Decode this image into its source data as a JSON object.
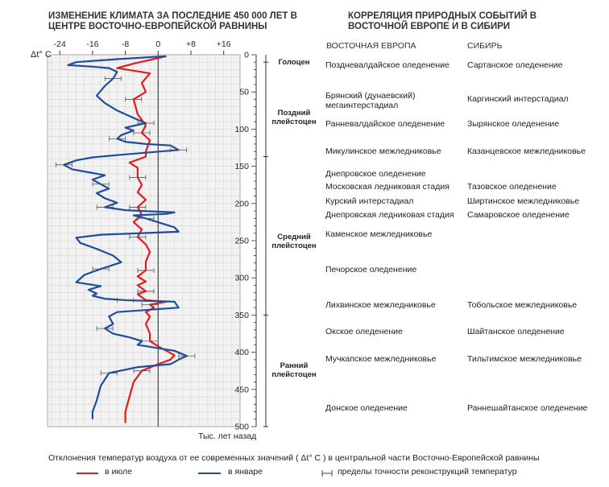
{
  "titles": {
    "left": "ИЗМЕНЕНИЕ КЛИМАТА ЗА ПОСЛЕДНИЕ 450 000 ЛЕТ В ЦЕНТРЕ ВОСТОЧНО-ЕВРОПЕЙСКОЙ РАВНИНЫ",
    "right": "КОРРЕЛЯЦИЯ ПРИРОДНЫХ СОБЫТИЙ В ВОСТОЧНОЙ ЕВРОПЕ И В СИБИРИ"
  },
  "columns": {
    "east_europe": "ВОСТОЧНАЯ ЕВРОПА",
    "siberia": "СИБИРЬ"
  },
  "chart_data": {
    "type": "line",
    "xlabel": "Δt° C",
    "ylabel": "Тыс. лет назад",
    "x_ticks": [
      "-24",
      "-16",
      "-8",
      "0",
      "+8",
      "+16"
    ],
    "x_tick_values": [
      -24,
      -16,
      -8,
      0,
      8,
      16
    ],
    "y_ticks": [
      0,
      50,
      100,
      150,
      200,
      250,
      300,
      350,
      400,
      450,
      500
    ],
    "xlim": [
      -27,
      20
    ],
    "ylim": [
      0,
      500
    ],
    "grid": true,
    "series": [
      {
        "name": "в июле",
        "color": "#e21b1b",
        "points": [
          [
            2,
            2
          ],
          [
            -6,
            12
          ],
          [
            -10,
            18
          ],
          [
            -2,
            25
          ],
          [
            -4,
            38
          ],
          [
            -3,
            50
          ],
          [
            -6,
            60
          ],
          [
            -5,
            80
          ],
          [
            -3,
            95
          ],
          [
            -4,
            105
          ],
          [
            -2,
            115
          ],
          [
            -3,
            130
          ],
          [
            -3,
            137
          ],
          [
            -7,
            145
          ],
          [
            -5,
            152
          ],
          [
            -5,
            165
          ],
          [
            -4,
            175
          ],
          [
            -5,
            185
          ],
          [
            -3,
            195
          ],
          [
            -5,
            205
          ],
          [
            -4,
            215
          ],
          [
            -6,
            225
          ],
          [
            -4,
            235
          ],
          [
            -5,
            245
          ],
          [
            -3,
            255
          ],
          [
            -2,
            265
          ],
          [
            -3,
            278
          ],
          [
            -3,
            290
          ],
          [
            -5,
            298
          ],
          [
            -3,
            305
          ],
          [
            -5,
            310
          ],
          [
            -3,
            318
          ],
          [
            -5,
            322
          ],
          [
            -3,
            330
          ],
          [
            2,
            332
          ],
          [
            -2,
            336
          ],
          [
            -1,
            340
          ],
          [
            -3,
            346
          ],
          [
            -2,
            352
          ],
          [
            -3,
            362
          ],
          [
            -2,
            375
          ],
          [
            -2,
            385
          ],
          [
            0,
            392
          ],
          [
            2,
            398
          ],
          [
            4,
            404
          ],
          [
            3,
            410
          ],
          [
            0,
            416
          ],
          [
            -4,
            425
          ],
          [
            -6,
            440
          ],
          [
            -7,
            460
          ],
          [
            -8,
            480
          ],
          [
            -8,
            495
          ]
        ]
      },
      {
        "name": "в январе",
        "color": "#1f4d9b",
        "points": [
          [
            2,
            2
          ],
          [
            -10,
            6
          ],
          [
            -20,
            10
          ],
          [
            -22,
            14
          ],
          [
            -16,
            16
          ],
          [
            -12,
            18
          ],
          [
            -10,
            23
          ],
          [
            -11,
            32
          ],
          [
            -13,
            42
          ],
          [
            -15,
            55
          ],
          [
            -13,
            65
          ],
          [
            -10,
            75
          ],
          [
            -6,
            85
          ],
          [
            -3,
            92
          ],
          [
            -8,
            98
          ],
          [
            -6,
            102
          ],
          [
            -9,
            108
          ],
          [
            -10,
            113
          ],
          [
            -8,
            117
          ],
          [
            -3,
            120
          ],
          [
            3,
            122
          ],
          [
            5,
            128
          ],
          [
            -8,
            134
          ],
          [
            -16,
            138
          ],
          [
            -20,
            142
          ],
          [
            -23,
            148
          ],
          [
            -21,
            154
          ],
          [
            -17,
            158
          ],
          [
            -13,
            162
          ],
          [
            -16,
            168
          ],
          [
            -14,
            174
          ],
          [
            -12,
            180
          ],
          [
            -15,
            186
          ],
          [
            -13,
            193
          ],
          [
            -10,
            199
          ],
          [
            -13,
            205
          ],
          [
            -8,
            209
          ],
          [
            4,
            212
          ],
          [
            2,
            214
          ],
          [
            -6,
            216
          ],
          [
            -3,
            220
          ],
          [
            4,
            232
          ],
          [
            5,
            238
          ],
          [
            -14,
            242
          ],
          [
            -20,
            246
          ],
          [
            -19,
            253
          ],
          [
            -15,
            261
          ],
          [
            -11,
            270
          ],
          [
            -9,
            279
          ],
          [
            -14,
            288
          ],
          [
            -18,
            296
          ],
          [
            -20,
            306
          ],
          [
            -14,
            311
          ],
          [
            -17,
            316
          ],
          [
            -15,
            321
          ],
          [
            -16,
            324
          ],
          [
            -13,
            328
          ],
          [
            -8,
            330
          ],
          [
            4,
            332
          ],
          [
            5,
            340
          ],
          [
            -10,
            346
          ],
          [
            -12,
            352
          ],
          [
            -11,
            362
          ],
          [
            -13,
            368
          ],
          [
            -11,
            375
          ],
          [
            -7,
            380
          ],
          [
            -4,
            385
          ],
          [
            -5,
            390
          ],
          [
            4,
            398
          ],
          [
            7,
            405
          ],
          [
            5,
            410
          ],
          [
            3,
            416
          ],
          [
            -5,
            420
          ],
          [
            -12,
            428
          ],
          [
            -14,
            445
          ],
          [
            -15,
            465
          ],
          [
            -16,
            480
          ],
          [
            -16,
            490
          ]
        ]
      }
    ],
    "periods": [
      {
        "label": "Голоцен",
        "y": 10
      },
      {
        "label": "Поздний плейстоцен",
        "y": 78
      },
      {
        "label": "Средний плейстоцен",
        "y": 245
      },
      {
        "label": "Ранний плейстоцен",
        "y": 418
      }
    ],
    "period_boundaries": [
      10,
      137,
      350,
      500
    ]
  },
  "events_east_europe": [
    {
      "text": "Поздневалдайское оледенение",
      "y": 14
    },
    {
      "text": "Брянский (дунаевский) мегаинтерстадиал",
      "y": 55
    },
    {
      "text": "Ранневалдайское оледенение",
      "y": 93
    },
    {
      "text": "Микулинское межледниковье",
      "y": 130
    },
    {
      "text": "Днепровское оледенение",
      "y": 160
    },
    {
      "text": "Московская ледниковая стадия",
      "y": 177
    },
    {
      "text": "Курский интерстадиал",
      "y": 197
    },
    {
      "text": "Днепровская ледниковая стадия",
      "y": 215
    },
    {
      "text": "Каменское межледниковье",
      "y": 241
    },
    {
      "text": "Печорское оледенение",
      "y": 289
    },
    {
      "text": "Лихвинское межледниковье",
      "y": 337
    },
    {
      "text": "Окское оледенение",
      "y": 372
    },
    {
      "text": "Мучкапское межледниковье",
      "y": 409
    },
    {
      "text": "Донское оледенение",
      "y": 475
    }
  ],
  "events_siberia": [
    {
      "text": "Сартанское оледенение",
      "y": 14
    },
    {
      "text": "Каргинский интерстадиал",
      "y": 60
    },
    {
      "text": "Зырянское оледенение",
      "y": 93
    },
    {
      "text": "Казанцевское межледниковье",
      "y": 130
    },
    {
      "text": "Тазовское оледенение",
      "y": 177
    },
    {
      "text": "Ширтинское межледниковье",
      "y": 197
    },
    {
      "text": "Самаровское оледенение",
      "y": 215
    },
    {
      "text": "Тобольское межледниковье",
      "y": 337
    },
    {
      "text": "Шайтанское оледенение",
      "y": 372
    },
    {
      "text": "Тильтимское межледниковье",
      "y": 409
    },
    {
      "text": "Раннешайтанское оледенение",
      "y": 475
    }
  ],
  "footer": {
    "y_axis_label": "Тыс. лет назад",
    "note_prefix": "Отклонения температур воздуха от ее современных значений (",
    "note_unit": "Δt° C",
    "note_suffix": ") в центральной части Восточно-Европейской равнины",
    "legend_july": "в июле",
    "legend_january": "в январе",
    "legend_error": "пределы точности реконструкций температур"
  }
}
